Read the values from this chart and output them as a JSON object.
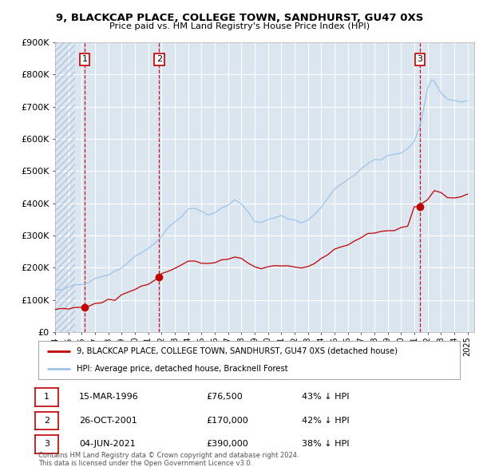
{
  "title": "9, BLACKCAP PLACE, COLLEGE TOWN, SANDHURST, GU47 0XS",
  "subtitle": "Price paid vs. HM Land Registry's House Price Index (HPI)",
  "xlim": [
    1994.0,
    2025.5
  ],
  "ylim": [
    0,
    900000
  ],
  "yticks": [
    0,
    100000,
    200000,
    300000,
    400000,
    500000,
    600000,
    700000,
    800000,
    900000
  ],
  "ytick_labels": [
    "£0",
    "£100K",
    "£200K",
    "£300K",
    "£400K",
    "£500K",
    "£600K",
    "£700K",
    "£800K",
    "£900K"
  ],
  "sale_dates": [
    1996.21,
    2001.82,
    2021.42
  ],
  "sale_prices": [
    76500,
    170000,
    390000
  ],
  "sale_labels": [
    "1",
    "2",
    "3"
  ],
  "legend_red": "9, BLACKCAP PLACE, COLLEGE TOWN, SANDHURST, GU47 0XS (detached house)",
  "legend_blue": "HPI: Average price, detached house, Bracknell Forest",
  "table_rows": [
    [
      "1",
      "15-MAR-1996",
      "£76,500",
      "43% ↓ HPI"
    ],
    [
      "2",
      "26-OCT-2001",
      "£170,000",
      "42% ↓ HPI"
    ],
    [
      "3",
      "04-JUN-2021",
      "£390,000",
      "38% ↓ HPI"
    ]
  ],
  "footnote": "Contains HM Land Registry data © Crown copyright and database right 2024.\nThis data is licensed under the Open Government Licence v3.0.",
  "background_color": "#ffffff",
  "plot_bg_color": "#dce6f1",
  "grid_color": "#ffffff",
  "red_color": "#c00000",
  "blue_color": "#9dc3e6",
  "hatch_end_year": 1994.5
}
